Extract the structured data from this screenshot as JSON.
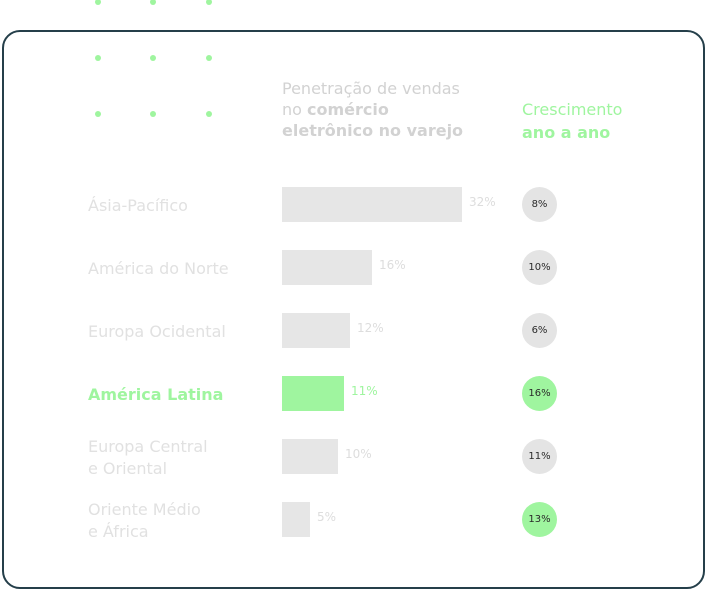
{
  "chart_data": {
    "type": "bar",
    "title_parts": [
      "Penetração de vendas no ",
      "comércio eletrônico no varejo"
    ],
    "growth_title_parts": [
      "Crescimento ",
      "ano a ano"
    ],
    "categories": [
      [
        "Ásia-Pacífico"
      ],
      [
        "América do Norte"
      ],
      [
        "Europa Ocidental"
      ],
      [
        "América Latina"
      ],
      [
        "Europa Central",
        "e Oriental"
      ],
      [
        "Oriente Médio",
        "e África"
      ]
    ],
    "values": [
      32,
      16,
      12,
      11,
      10,
      5
    ],
    "value_labels": [
      "32%",
      "16%",
      "12%",
      "11%",
      "10%",
      "5%"
    ],
    "growth": [
      8,
      10,
      6,
      16,
      11,
      13
    ],
    "growth_labels": [
      "8%",
      "10%",
      "6%",
      "16%",
      "11%",
      "13%"
    ],
    "highlight_category": "América Latina",
    "highlight_growth_rows": [
      3,
      5
    ],
    "colors": {
      "accent": "#9ff59f",
      "bar": "#e6e6e6",
      "badge": "#e4e4e4",
      "muted_text": "#e1e1e1",
      "border": "#253f4a"
    }
  }
}
